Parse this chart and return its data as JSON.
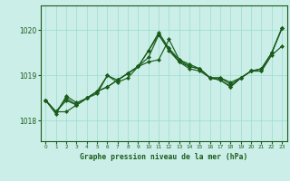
{
  "title": "Graphe pression niveau de la mer (hPa)",
  "background_color": "#cceee8",
  "grid_color": "#99ddcc",
  "line_color": "#1a5c1a",
  "xlim": [
    -0.5,
    23.5
  ],
  "ylim": [
    1017.55,
    1020.55
  ],
  "yticks": [
    1018,
    1019,
    1020
  ],
  "xticks": [
    0,
    1,
    2,
    3,
    4,
    5,
    6,
    7,
    8,
    9,
    10,
    11,
    12,
    13,
    14,
    15,
    16,
    17,
    18,
    19,
    20,
    21,
    22,
    23
  ],
  "series": [
    [
      1018.45,
      1018.2,
      1018.45,
      1018.35,
      1018.5,
      1018.6,
      1019.0,
      1018.85,
      1018.95,
      1019.2,
      1019.3,
      1019.35,
      1019.8,
      1019.35,
      1019.25,
      1019.15,
      1018.95,
      1018.95,
      1018.85,
      1018.95,
      1019.1,
      1019.15,
      1019.5,
      1020.05
    ],
    [
      1018.45,
      1018.2,
      1018.5,
      1018.35,
      1018.5,
      1018.65,
      1018.75,
      1018.9,
      1019.05,
      1019.2,
      1019.55,
      1019.9,
      1019.55,
      1019.3,
      1019.2,
      1019.15,
      1018.95,
      1018.95,
      1018.8,
      1018.95,
      1019.1,
      1019.15,
      1019.5,
      1020.05
    ],
    [
      1018.45,
      1018.2,
      1018.2,
      1018.35,
      1018.5,
      1018.65,
      1018.75,
      1018.9,
      1019.05,
      1019.2,
      1019.4,
      1019.9,
      1019.6,
      1019.3,
      1019.15,
      1019.1,
      1018.95,
      1018.9,
      1018.75,
      1018.95,
      1019.1,
      1019.1,
      1019.45,
      1019.65
    ],
    [
      1018.45,
      1018.15,
      1018.55,
      1018.4,
      1018.5,
      1018.65,
      1019.0,
      1018.9,
      1019.05,
      1019.2,
      1019.55,
      1019.95,
      1019.6,
      1019.35,
      1019.2,
      1019.15,
      1018.95,
      1018.9,
      1018.75,
      1018.95,
      1019.1,
      1019.1,
      1019.5,
      1020.05
    ]
  ]
}
